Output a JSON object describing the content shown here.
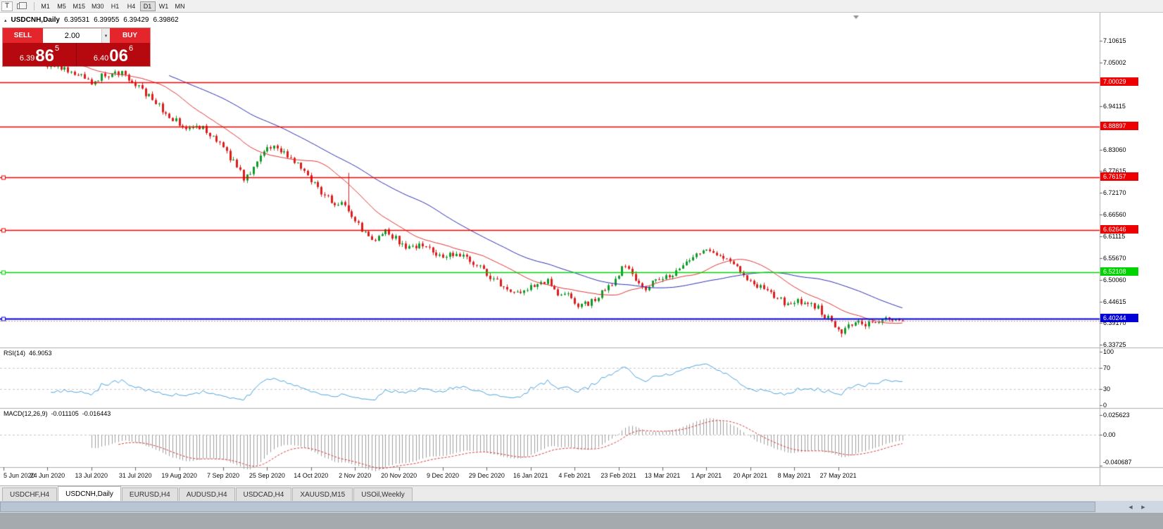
{
  "toolbar": {
    "handle": "T",
    "timeframes": [
      "M1",
      "M5",
      "M15",
      "M30",
      "H1",
      "H4",
      "D1",
      "W1",
      "MN"
    ],
    "active_timeframe": "D1"
  },
  "header": {
    "symbol": "USDCNH,Daily",
    "open": "6.39531",
    "high": "6.39955",
    "low": "6.39429",
    "close": "6.39862"
  },
  "trade_panel": {
    "sell_label": "SELL",
    "buy_label": "BUY",
    "volume": "2.00",
    "sell_price": {
      "big": "6.39",
      "pips": "86",
      "pipette": "5"
    },
    "buy_price": {
      "big": "6.40",
      "pips": "06",
      "pipette": "6"
    }
  },
  "price_axis_ticks": [
    "7.10615",
    "7.05002",
    "6.94115",
    "6.83060",
    "6.77615",
    "6.72170",
    "6.66560",
    "6.61115",
    "6.55670",
    "6.50060",
    "6.44615",
    "6.39170",
    "6.33725"
  ],
  "levels": [
    {
      "price": 7.00029,
      "label": "7.00029",
      "color": "#ee0000",
      "width": 1.4,
      "handle": false
    },
    {
      "price": 6.88897,
      "label": "6.88897",
      "color": "#ee0000",
      "width": 1.4,
      "handle": false
    },
    {
      "price": 6.76157,
      "label": "6.76157",
      "color": "#ee0000",
      "width": 1.4,
      "handle": true
    },
    {
      "price": 6.62646,
      "label": "6.62646",
      "color": "#ee0000",
      "width": 1.4,
      "handle": true
    },
    {
      "price": 6.52108,
      "label": "6.52108",
      "color": "#00d400",
      "width": 1.4,
      "handle": true
    },
    {
      "price": 6.40244,
      "label": "6.40244",
      "color": "#0202d6",
      "width": 2,
      "handle": true
    }
  ],
  "bid_price": 6.39862,
  "date_axis": [
    "5 Jun 2020",
    "24 Jun 2020",
    "13 Jul 2020",
    "31 Jul 2020",
    "19 Aug 2020",
    "7 Sep 2020",
    "25 Sep 2020",
    "14 Oct 2020",
    "2 Nov 2020",
    "20 Nov 2020",
    "9 Dec 2020",
    "29 Dec 2020",
    "16 Jan 2021",
    "4 Feb 2021",
    "23 Feb 2021",
    "13 Mar 2021",
    "1 Apr 2021",
    "20 Apr 2021",
    "8 May 2021",
    "27 May 2021"
  ],
  "rsi": {
    "title": "RSI(14)",
    "value": "46.9053",
    "scale_labels": [
      "100",
      "70",
      "30",
      "0"
    ],
    "guides": [
      70,
      30
    ],
    "line_color": "#4aa3dd"
  },
  "macd": {
    "title": "MACD(12,26,9)",
    "value_main": "-0.011105",
    "value_signal": "-0.016443",
    "scale_labels": [
      "0.025623",
      "0.00",
      "-0.040687"
    ],
    "hist_color": "#9e9e9e",
    "signal_color": "#d43a3a"
  },
  "tabs": [
    "USDCHF,H4",
    "USDCNH,Daily",
    "EURUSD,H4",
    "AUDUSD,H4",
    "USDCAD,H4",
    "XAUUSD,M15",
    "USOil,Weekly"
  ],
  "active_tab": "USDCNH,Daily",
  "chart_data": {
    "type": "candlestick",
    "symbol": "USDCNH",
    "timeframe": "Daily",
    "bar_count": 267,
    "price_scale": {
      "top": 7.138,
      "bottom": 6.3337
    },
    "seed": 20210611,
    "up_color": "#119a2b",
    "down_color": "#dd1c1c",
    "ma_fast": {
      "period": 20,
      "color": "#e03333"
    },
    "ma_slow": {
      "period": 50,
      "color": "#2d2db0"
    },
    "spikes": [
      {
        "i": 72,
        "low": 6.746
      },
      {
        "i": 102,
        "high": 6.772
      },
      {
        "i": 248,
        "low": 6.356
      }
    ],
    "anchors": [
      [
        0,
        7.085
      ],
      [
        6,
        7.066
      ],
      [
        12,
        7.052
      ],
      [
        17,
        7.042
      ],
      [
        21,
        7.03
      ],
      [
        24,
        7.014
      ],
      [
        27,
        7.0
      ],
      [
        30,
        7.016
      ],
      [
        34,
        7.028
      ],
      [
        37,
        7.02
      ],
      [
        40,
        6.996
      ],
      [
        43,
        6.972
      ],
      [
        47,
        6.94
      ],
      [
        50,
        6.916
      ],
      [
        53,
        6.898
      ],
      [
        56,
        6.884
      ],
      [
        60,
        6.887
      ],
      [
        63,
        6.862
      ],
      [
        66,
        6.833
      ],
      [
        69,
        6.8
      ],
      [
        72,
        6.758
      ],
      [
        74,
        6.77
      ],
      [
        77,
        6.82
      ],
      [
        80,
        6.841
      ],
      [
        83,
        6.822
      ],
      [
        86,
        6.812
      ],
      [
        89,
        6.79
      ],
      [
        92,
        6.755
      ],
      [
        95,
        6.718
      ],
      [
        98,
        6.701
      ],
      [
        101,
        6.692
      ],
      [
        103,
        6.678
      ],
      [
        105,
        6.655
      ],
      [
        107,
        6.63
      ],
      [
        110,
        6.601
      ],
      [
        112,
        6.613
      ],
      [
        114,
        6.627
      ],
      [
        117,
        6.605
      ],
      [
        120,
        6.58
      ],
      [
        123,
        6.589
      ],
      [
        126,
        6.584
      ],
      [
        129,
        6.56
      ],
      [
        132,
        6.565
      ],
      [
        135,
        6.569
      ],
      [
        138,
        6.553
      ],
      [
        141,
        6.541
      ],
      [
        144,
        6.515
      ],
      [
        147,
        6.499
      ],
      [
        150,
        6.47
      ],
      [
        153,
        6.467
      ],
      [
        156,
        6.477
      ],
      [
        159,
        6.487
      ],
      [
        162,
        6.497
      ],
      [
        165,
        6.461
      ],
      [
        168,
        6.459
      ],
      [
        171,
        6.434
      ],
      [
        174,
        6.443
      ],
      [
        177,
        6.461
      ],
      [
        180,
        6.483
      ],
      [
        183,
        6.516
      ],
      [
        185,
        6.541
      ],
      [
        188,
        6.492
      ],
      [
        191,
        6.479
      ],
      [
        194,
        6.499
      ],
      [
        197,
        6.507
      ],
      [
        200,
        6.522
      ],
      [
        203,
        6.547
      ],
      [
        206,
        6.563
      ],
      [
        209,
        6.571
      ],
      [
        212,
        6.561
      ],
      [
        215,
        6.549
      ],
      [
        218,
        6.529
      ],
      [
        221,
        6.503
      ],
      [
        224,
        6.489
      ],
      [
        227,
        6.469
      ],
      [
        230,
        6.453
      ],
      [
        233,
        6.44
      ],
      [
        236,
        6.446
      ],
      [
        239,
        6.441
      ],
      [
        242,
        6.429
      ],
      [
        245,
        6.403
      ],
      [
        247,
        6.381
      ],
      [
        249,
        6.363
      ],
      [
        251,
        6.384
      ],
      [
        253,
        6.393
      ],
      [
        256,
        6.389
      ],
      [
        259,
        6.391
      ],
      [
        262,
        6.401
      ],
      [
        264,
        6.394
      ],
      [
        266,
        6.3986
      ]
    ]
  }
}
